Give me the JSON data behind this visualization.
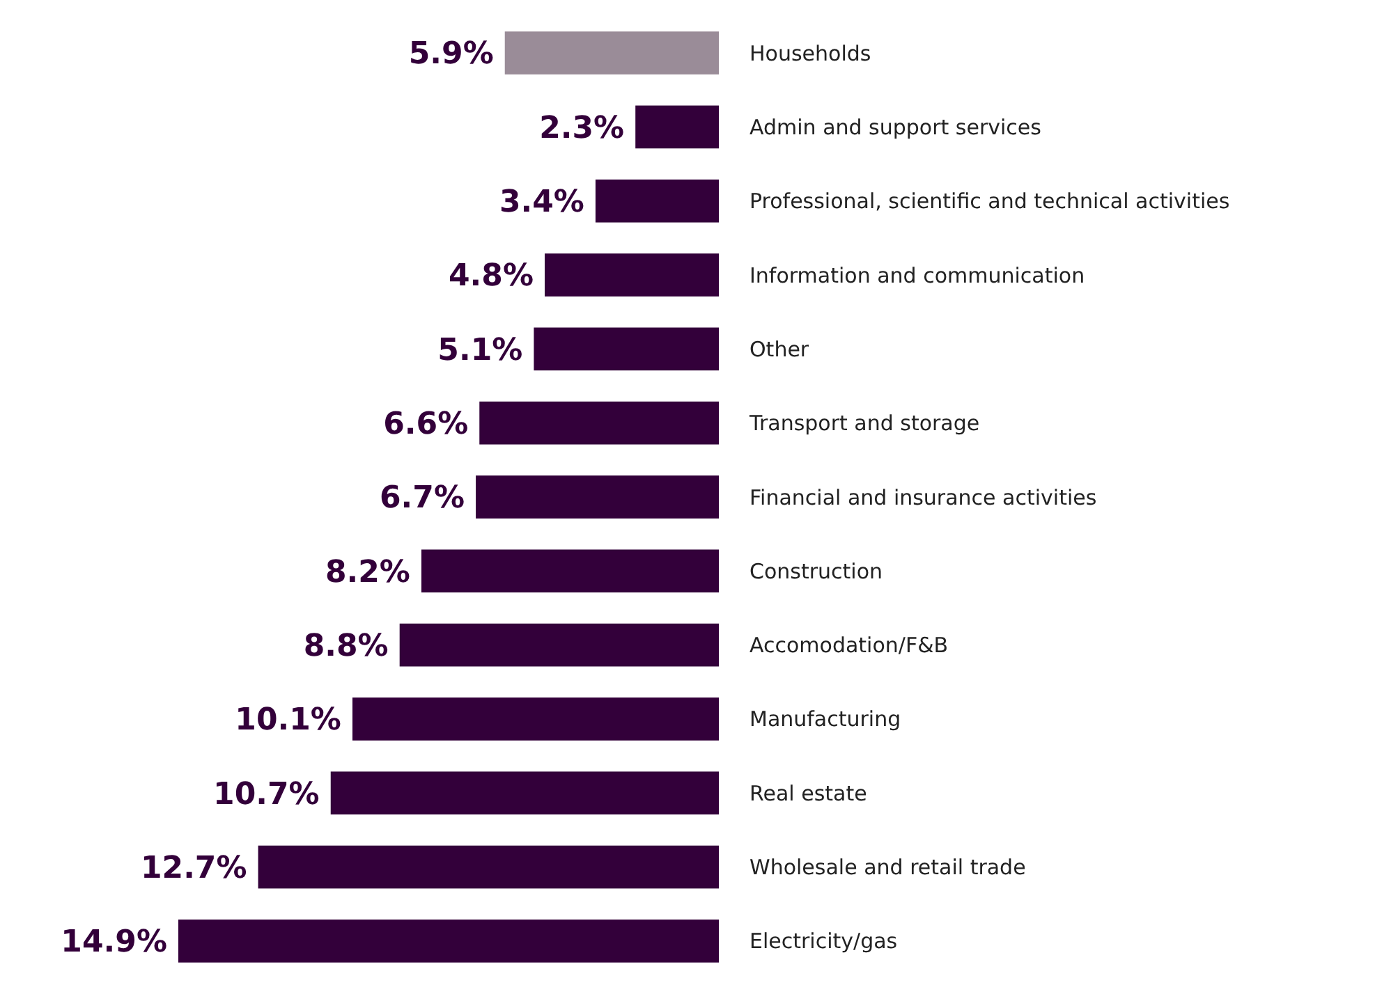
{
  "chart_data": {
    "type": "bar",
    "orientation": "horizontal",
    "categories": [
      "Households",
      "Admin and support services",
      "Professional, scientific and technical activities",
      "Information and communication",
      "Other",
      "Transport and storage",
      "Financial and insurance activities",
      "Construction",
      "Accomodation/F&B",
      "Manufacturing",
      "Real estate",
      "Wholesale and retail trade",
      "Electricity/gas"
    ],
    "values": [
      5.9,
      2.3,
      3.4,
      4.8,
      5.1,
      6.6,
      6.7,
      8.2,
      8.8,
      10.1,
      10.7,
      12.7,
      14.9
    ],
    "colors": [
      "#9a8c98",
      "#33003a",
      "#33003a",
      "#33003a",
      "#33003a",
      "#33003a",
      "#33003a",
      "#33003a",
      "#33003a",
      "#33003a",
      "#33003a",
      "#33003a",
      "#33003a"
    ],
    "value_labels": [
      "5.9%",
      "2.3%",
      "3.4%",
      "4.8%",
      "5.1%",
      "6.6%",
      "6.7%",
      "8.2%",
      "8.8%",
      "10.1%",
      "10.7%",
      "12.7%",
      "14.9%"
    ],
    "tick_labels": "y"
  }
}
